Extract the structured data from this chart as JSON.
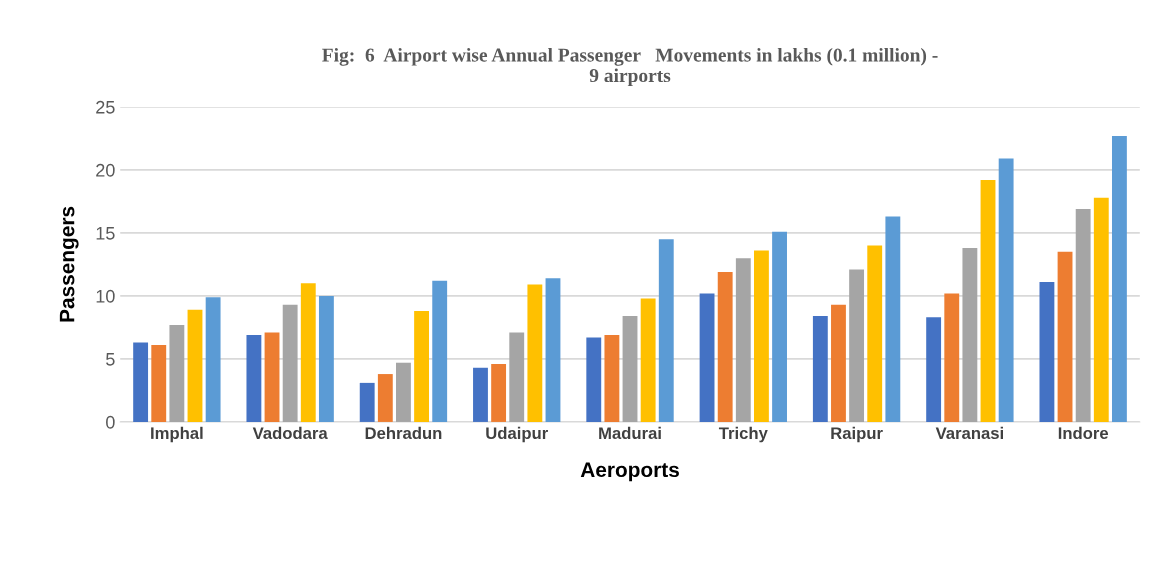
{
  "chart_data": {
    "type": "bar",
    "title": "Fig:  6  Airport wise Annual Passenger   Movements in lakhs (0.1 million) -\n9 airports",
    "xlabel": "Aeroports",
    "ylabel": "Passengers",
    "categories": [
      "Imphal",
      "Vadodara",
      "Dehradun",
      "Udaipur",
      "Madurai",
      "Trichy",
      "Raipur",
      "Varanasi",
      "Indore"
    ],
    "series": [
      {
        "color": "#4472c4",
        "values": [
          6.3,
          6.9,
          3.1,
          4.3,
          6.7,
          10.2,
          8.4,
          8.3,
          11.1
        ]
      },
      {
        "color": "#ed7d31",
        "values": [
          6.1,
          7.1,
          3.8,
          4.6,
          6.9,
          11.9,
          9.3,
          10.2,
          13.5
        ]
      },
      {
        "color": "#a5a5a5",
        "values": [
          7.7,
          9.3,
          4.7,
          7.1,
          8.4,
          13.0,
          12.1,
          13.8,
          16.9
        ]
      },
      {
        "color": "#ffc000",
        "values": [
          8.9,
          11.0,
          8.8,
          10.9,
          9.8,
          13.6,
          14.0,
          19.2,
          17.8
        ]
      },
      {
        "color": "#5b9bd5",
        "values": [
          9.9,
          10.0,
          11.2,
          11.4,
          14.5,
          15.1,
          16.3,
          20.9,
          22.7
        ]
      }
    ],
    "ylim": [
      0,
      25
    ],
    "yticks": [
      0,
      5,
      10,
      15,
      20,
      25
    ],
    "grid": "y",
    "legend": false
  }
}
